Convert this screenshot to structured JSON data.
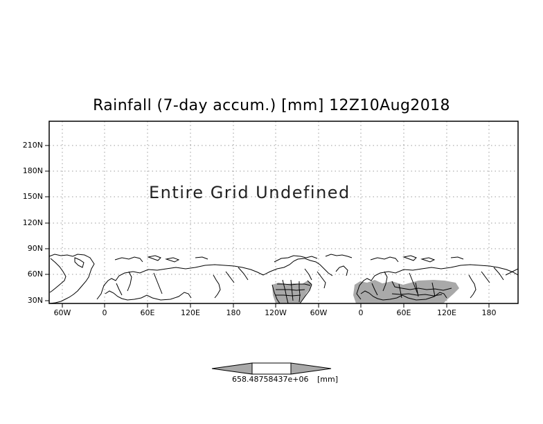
{
  "title": "Rainfall (7-day accum.) [mm] 12Z10Aug2018",
  "undefined_message": "Entire Grid Undefined",
  "map": {
    "y_axis_ticks": [
      "210N",
      "180N",
      "150N",
      "120N",
      "90N",
      "60N",
      "30N"
    ],
    "x_axis_ticks": [
      "60W",
      "0",
      "60E",
      "120E",
      "180",
      "120W",
      "60W",
      "0",
      "60E",
      "120E",
      "180"
    ],
    "grid": "dotted",
    "shading_color": "#a9a9a9",
    "coastline_color": "#000000"
  },
  "colorbar": {
    "value_label": "658.48758437e+06",
    "unit_label": "[mm]",
    "fill_color": "#a9a9a9"
  }
}
